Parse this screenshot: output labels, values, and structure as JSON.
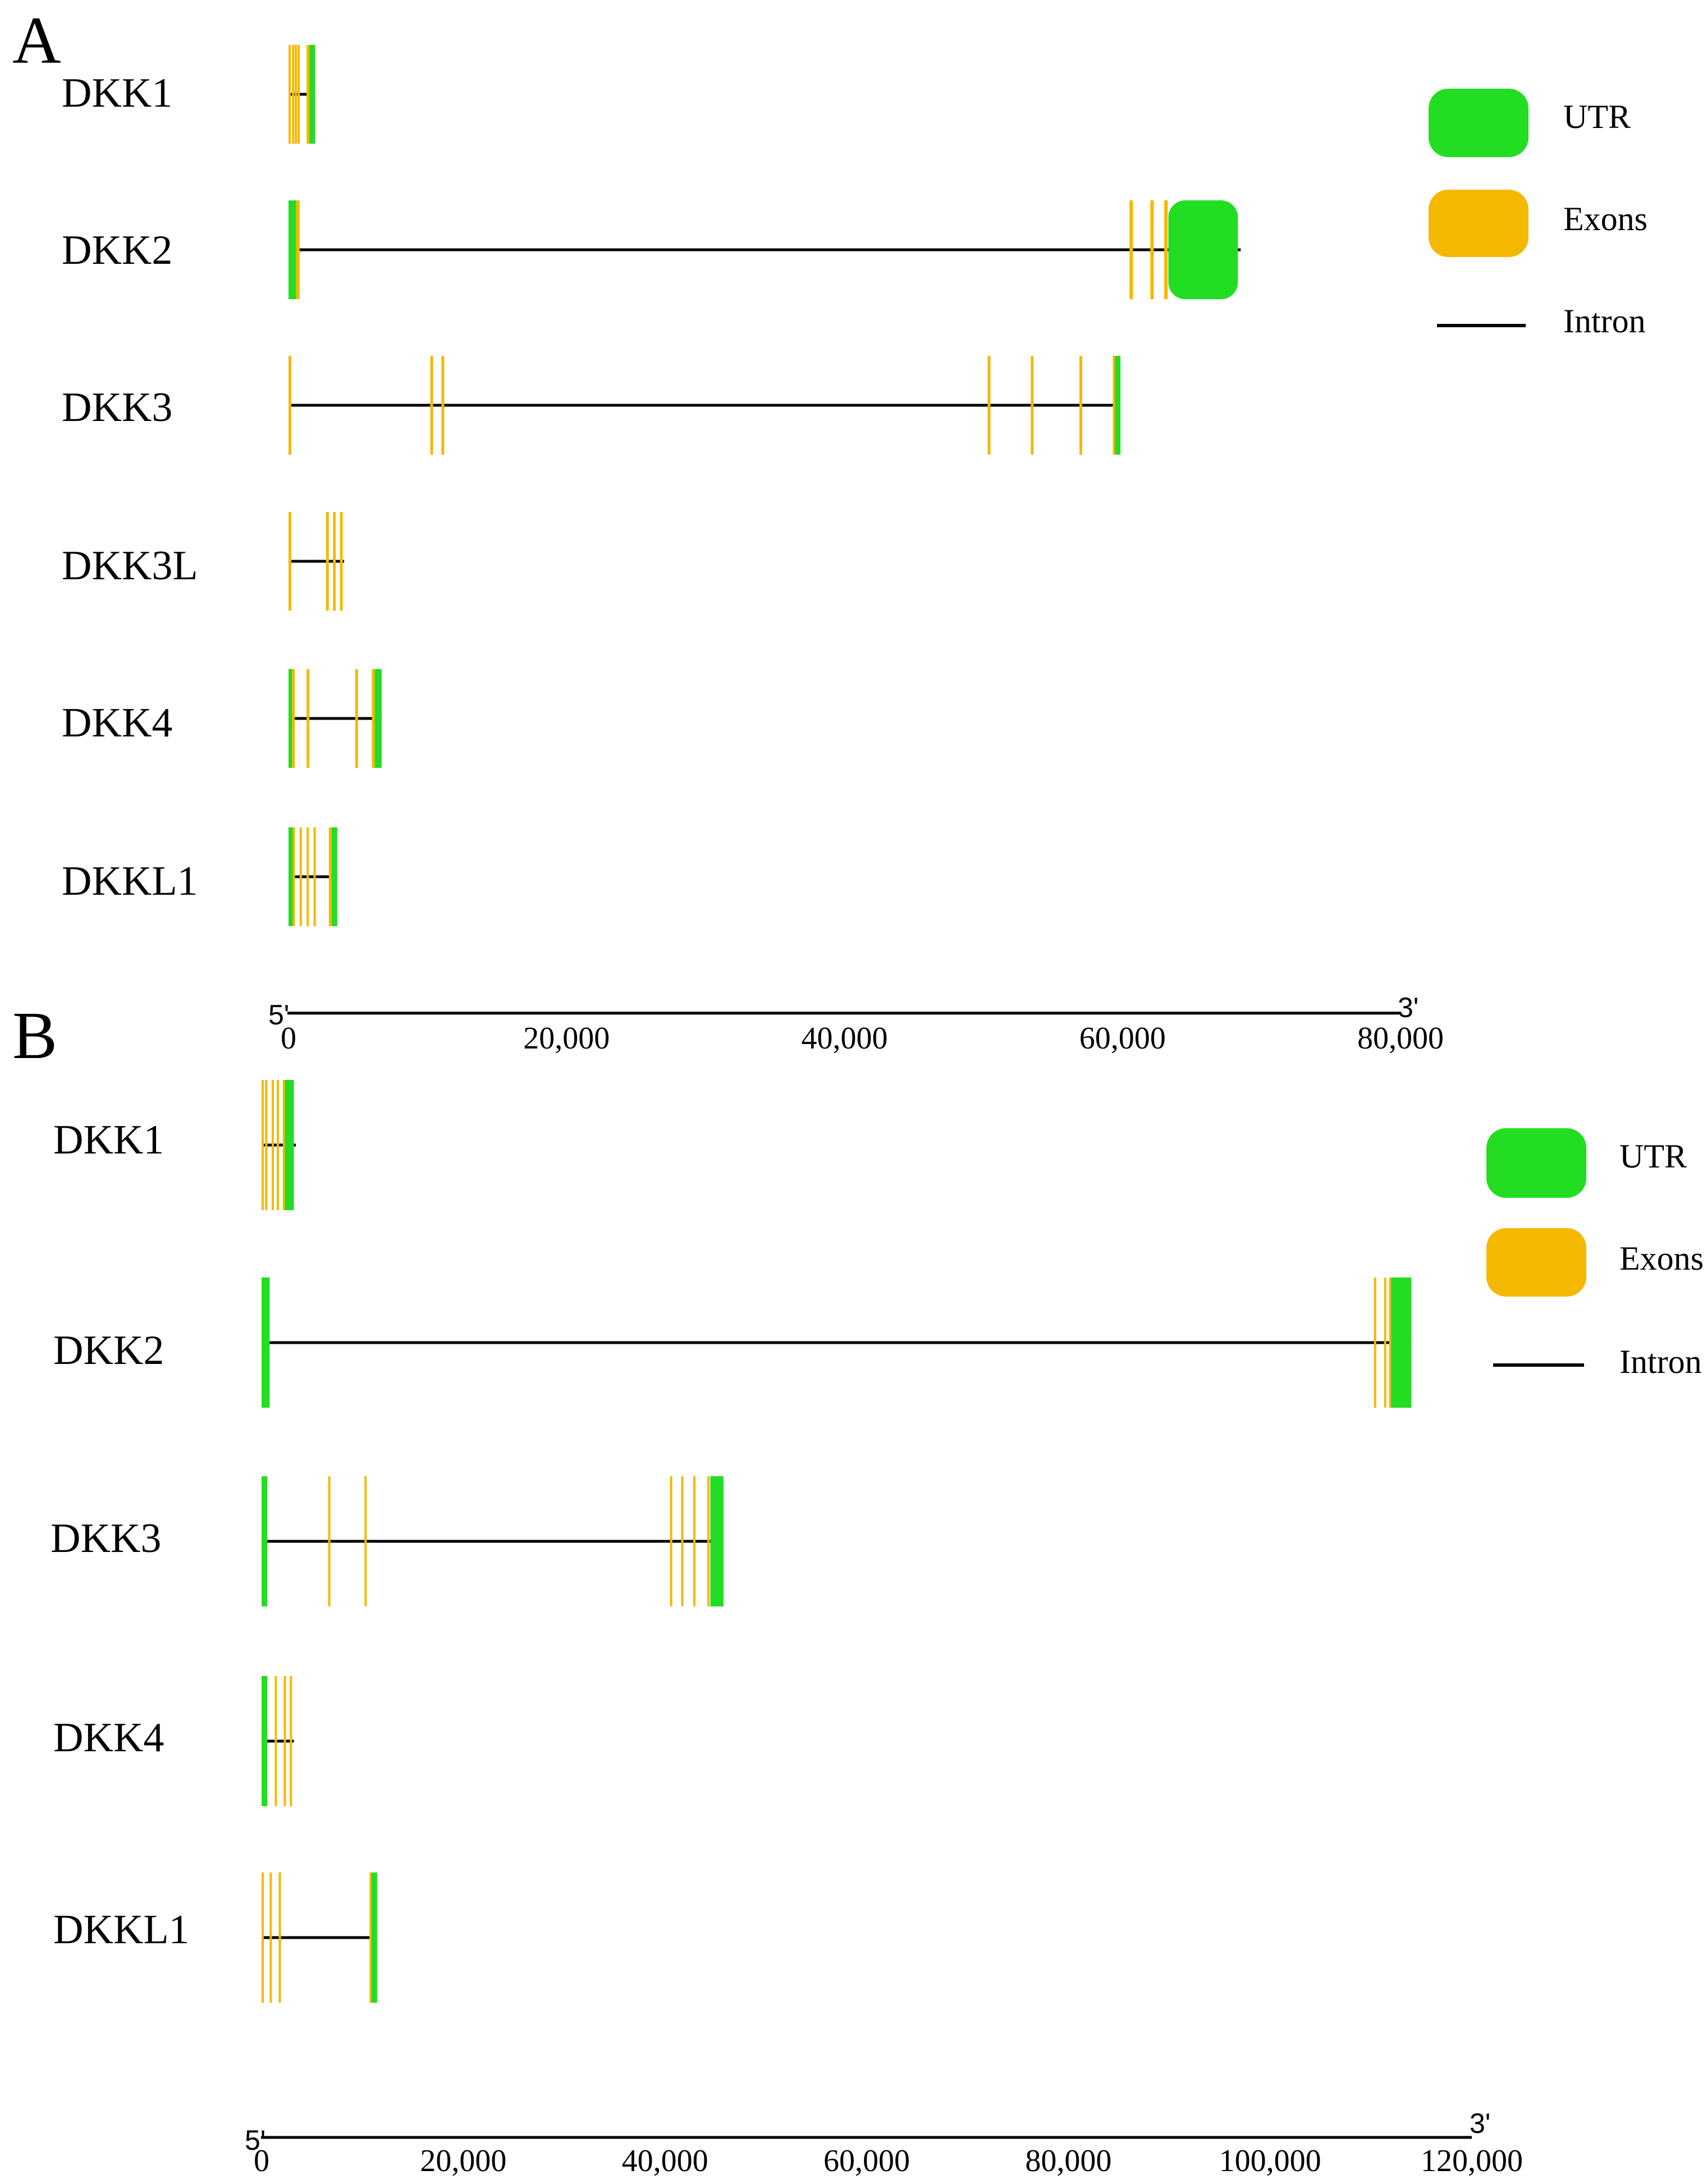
{
  "colors": {
    "utr": "#22dd22",
    "exon": "#f5b800",
    "intron": "#000000"
  },
  "legend": [
    {
      "key": "utr",
      "label": "UTR"
    },
    {
      "key": "exons",
      "label": "Exons"
    },
    {
      "key": "intron",
      "label": "Intron"
    }
  ],
  "panels": [
    {
      "id": "A",
      "label": "A",
      "axis": {
        "five_prime": "5'",
        "three_prime": "3'",
        "max": 80000,
        "ticks": [
          {
            "value": 0,
            "label": "0"
          },
          {
            "value": 20000,
            "label": "20,000"
          },
          {
            "value": 40000,
            "label": "40,000"
          },
          {
            "value": 60000,
            "label": "60,000"
          },
          {
            "value": 80000,
            "label": "80,000"
          }
        ]
      },
      "genes": [
        {
          "name": "DKK1",
          "span": [
            0,
            1800
          ],
          "features": [
            {
              "t": "exon",
              "s": 0,
              "e": 150
            },
            {
              "t": "exon",
              "s": 250,
              "e": 400
            },
            {
              "t": "exon",
              "s": 450,
              "e": 600
            },
            {
              "t": "exon",
              "s": 650,
              "e": 800
            },
            {
              "t": "exon",
              "s": 1300,
              "e": 1500
            },
            {
              "t": "utr",
              "s": 1500,
              "e": 1800
            }
          ]
        },
        {
          "name": "DKK2",
          "span": [
            0,
            68500
          ],
          "features": [
            {
              "t": "utr",
              "s": 0,
              "e": 550
            },
            {
              "t": "exon",
              "s": 550,
              "e": 800
            },
            {
              "t": "exon",
              "s": 60500,
              "e": 60750
            },
            {
              "t": "exon",
              "s": 62000,
              "e": 62250
            },
            {
              "t": "exon",
              "s": 63000,
              "e": 63250
            },
            {
              "t": "utr",
              "s": 63300,
              "e": 68300
            }
          ]
        },
        {
          "name": "DKK3",
          "span": [
            0,
            59800
          ],
          "features": [
            {
              "t": "exon",
              "s": 0,
              "e": 200
            },
            {
              "t": "exon",
              "s": 10200,
              "e": 10400
            },
            {
              "t": "exon",
              "s": 11000,
              "e": 11200
            },
            {
              "t": "exon",
              "s": 50300,
              "e": 50500
            },
            {
              "t": "exon",
              "s": 53400,
              "e": 53600
            },
            {
              "t": "exon",
              "s": 56900,
              "e": 57100
            },
            {
              "t": "exon",
              "s": 59300,
              "e": 59450
            },
            {
              "t": "utr",
              "s": 59450,
              "e": 59700
            }
          ]
        },
        {
          "name": "DKK3L",
          "span": [
            0,
            4000
          ],
          "features": [
            {
              "t": "exon",
              "s": 0,
              "e": 200
            },
            {
              "t": "exon",
              "s": 2700,
              "e": 2900
            },
            {
              "t": "exon",
              "s": 3200,
              "e": 3400
            },
            {
              "t": "exon",
              "s": 3700,
              "e": 3900
            }
          ]
        },
        {
          "name": "DKK4",
          "span": [
            0,
            6700
          ],
          "features": [
            {
              "t": "utr",
              "s": 0,
              "e": 250
            },
            {
              "t": "exon",
              "s": 250,
              "e": 450
            },
            {
              "t": "exon",
              "s": 1300,
              "e": 1500
            },
            {
              "t": "exon",
              "s": 4800,
              "e": 5000
            },
            {
              "t": "exon",
              "s": 6000,
              "e": 6200
            },
            {
              "t": "utr",
              "s": 6200,
              "e": 6700
            }
          ]
        },
        {
          "name": "DKKL1",
          "span": [
            0,
            3500
          ],
          "features": [
            {
              "t": "utr",
              "s": 0,
              "e": 100
            },
            {
              "t": "exon",
              "s": 300,
              "e": 450
            },
            {
              "t": "exon",
              "s": 800,
              "e": 950
            },
            {
              "t": "exon",
              "s": 1300,
              "e": 1450
            },
            {
              "t": "exon",
              "s": 1800,
              "e": 1950
            },
            {
              "t": "exon",
              "s": 2900,
              "e": 3100
            },
            {
              "t": "utr",
              "s": 3100,
              "e": 3300
            }
          ]
        }
      ]
    },
    {
      "id": "B",
      "label": "B",
      "axis": {
        "five_prime": "5'",
        "three_prime": "3'",
        "max": 120000,
        "ticks": [
          {
            "value": 0,
            "label": "0"
          },
          {
            "value": 20000,
            "label": "20,000"
          },
          {
            "value": 40000,
            "label": "40,000"
          },
          {
            "value": 60000,
            "label": "60,000"
          },
          {
            "value": 80000,
            "label": "80,000"
          },
          {
            "value": 100000,
            "label": "100,000"
          },
          {
            "value": 120000,
            "label": "120,000"
          }
        ]
      },
      "genes": [
        {
          "name": "DKK1",
          "span": [
            0,
            3400
          ],
          "features": [
            {
              "t": "exon",
              "s": 0,
              "e": 150
            },
            {
              "t": "exon",
              "s": 350,
              "e": 500
            },
            {
              "t": "exon",
              "s": 1000,
              "e": 1150
            },
            {
              "t": "exon",
              "s": 1500,
              "e": 1650
            },
            {
              "t": "exon",
              "s": 2100,
              "e": 2300
            },
            {
              "t": "utr",
              "s": 2300,
              "e": 3200
            }
          ]
        },
        {
          "name": "DKK2",
          "span": [
            0,
            114000
          ],
          "features": [
            {
              "t": "utr",
              "s": 0,
              "e": 800
            },
            {
              "t": "exon",
              "s": 110300,
              "e": 110500
            },
            {
              "t": "exon",
              "s": 111300,
              "e": 111500
            },
            {
              "t": "exon",
              "s": 111800,
              "e": 112000
            },
            {
              "t": "utr",
              "s": 112000,
              "e": 114000
            }
          ]
        },
        {
          "name": "DKK3",
          "span": [
            0,
            45800
          ],
          "features": [
            {
              "t": "utr",
              "s": 0,
              "e": 400
            },
            {
              "t": "exon",
              "s": 6600,
              "e": 6800
            },
            {
              "t": "exon",
              "s": 10200,
              "e": 10400
            },
            {
              "t": "exon",
              "s": 40500,
              "e": 40700
            },
            {
              "t": "exon",
              "s": 41600,
              "e": 41800
            },
            {
              "t": "exon",
              "s": 42800,
              "e": 43000
            },
            {
              "t": "exon",
              "s": 44200,
              "e": 44400
            },
            {
              "t": "utr",
              "s": 44500,
              "e": 45800
            }
          ]
        },
        {
          "name": "DKK4",
          "span": [
            0,
            3200
          ],
          "features": [
            {
              "t": "utr",
              "s": 0,
              "e": 250
            },
            {
              "t": "exon",
              "s": 1300,
              "e": 1500
            },
            {
              "t": "exon",
              "s": 2200,
              "e": 2400
            },
            {
              "t": "exon",
              "s": 2800,
              "e": 3000
            }
          ]
        },
        {
          "name": "DKKL1",
          "span": [
            0,
            11300
          ],
          "features": [
            {
              "t": "exon",
              "s": 0,
              "e": 150
            },
            {
              "t": "exon",
              "s": 800,
              "e": 950
            },
            {
              "t": "exon",
              "s": 1700,
              "e": 1850
            },
            {
              "t": "exon",
              "s": 10700,
              "e": 10900
            },
            {
              "t": "utr",
              "s": 10900,
              "e": 11100
            }
          ]
        }
      ]
    }
  ]
}
